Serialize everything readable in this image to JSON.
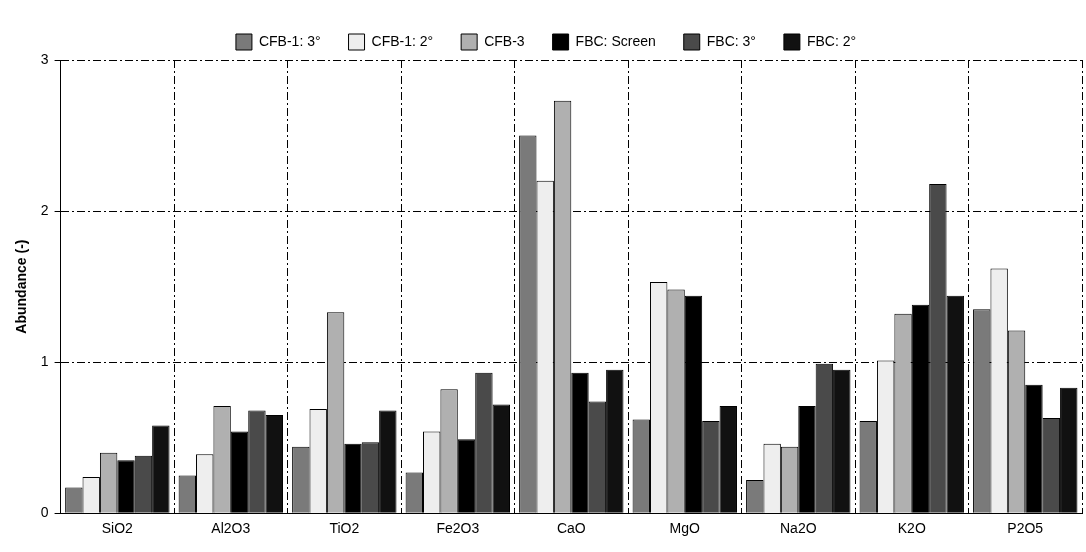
{
  "chart_data": {
    "type": "bar",
    "ylabel": "Abundance (-)",
    "categories": [
      "SiO2",
      "Al2O3",
      "TiO2",
      "Fe2O3",
      "CaO",
      "MgO",
      "Na2O",
      "K2O",
      "P2O5"
    ],
    "series": [
      {
        "name": "CFB-1: 3°",
        "color": "#7a7a7a",
        "values": [
          0.17,
          0.25,
          0.44,
          0.27,
          2.5,
          0.62,
          0.22,
          0.61,
          1.35
        ]
      },
      {
        "name": "CFB-1: 2°",
        "color": "#eeeeee",
        "values": [
          0.24,
          0.39,
          0.69,
          0.54,
          2.2,
          1.53,
          0.46,
          1.01,
          1.62
        ]
      },
      {
        "name": "CFB-3",
        "color": "#b0b0b0",
        "values": [
          0.4,
          0.71,
          1.33,
          0.82,
          2.73,
          1.48,
          0.44,
          1.32,
          1.21
        ]
      },
      {
        "name": "FBC: Screen",
        "color": "#000000",
        "values": [
          0.35,
          0.54,
          0.46,
          0.49,
          0.93,
          1.44,
          0.71,
          1.38,
          0.85
        ]
      },
      {
        "name": "FBC: 3°",
        "color": "#4a4a4a",
        "values": [
          0.38,
          0.68,
          0.47,
          0.93,
          0.74,
          0.61,
          0.99,
          2.18,
          0.63
        ]
      },
      {
        "name": "FBC: 2°",
        "color": "#111111",
        "values": [
          0.58,
          0.65,
          0.68,
          0.72,
          0.95,
          0.71,
          0.95,
          1.44,
          0.83
        ]
      }
    ],
    "ylim": [
      0,
      3
    ],
    "yticks": [
      0,
      1,
      2,
      3
    ],
    "grid": true,
    "legend": "top"
  }
}
